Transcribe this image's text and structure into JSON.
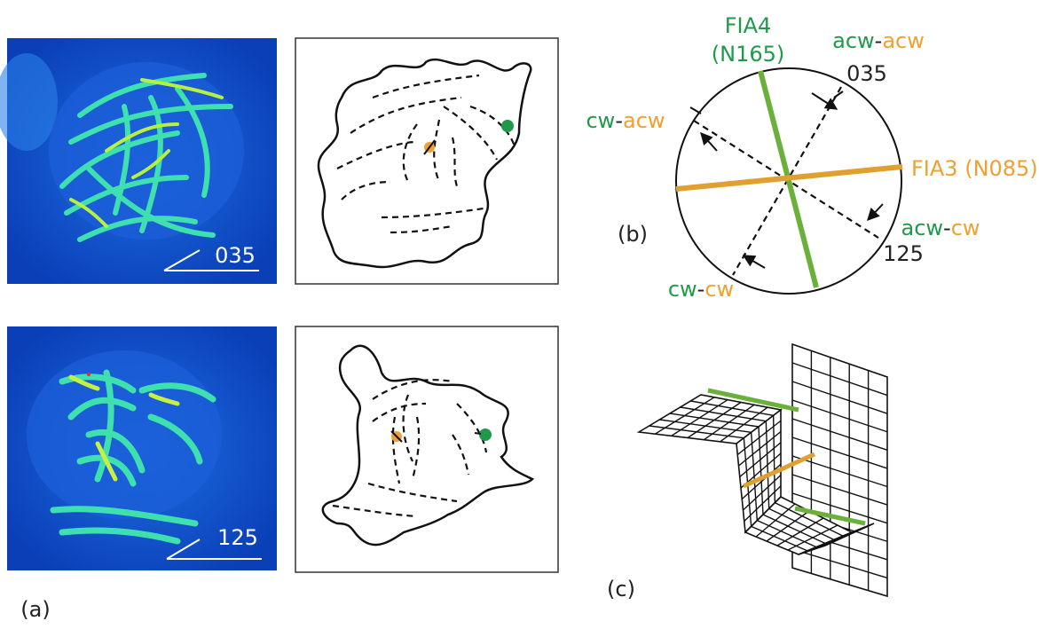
{
  "panel_a": {
    "label": "(a)",
    "images": [
      {
        "scale_label": "035"
      },
      {
        "scale_label": "125"
      }
    ]
  },
  "panel_b": {
    "label": "(b)",
    "fia4": {
      "name": "FIA4",
      "trend": "(N165)"
    },
    "fia3": "FIA3 (N085)",
    "senses": [
      {
        "parts": [
          "acw",
          "-",
          "acw"
        ],
        "strike": "035"
      },
      {
        "parts": [
          "cw",
          "-",
          "acw"
        ]
      },
      {
        "parts": [
          "acw",
          "-",
          "cw"
        ],
        "strike": "125"
      },
      {
        "parts": [
          "cw",
          "-",
          "cw"
        ]
      }
    ]
  },
  "panel_c": {
    "label": "(c)"
  }
}
